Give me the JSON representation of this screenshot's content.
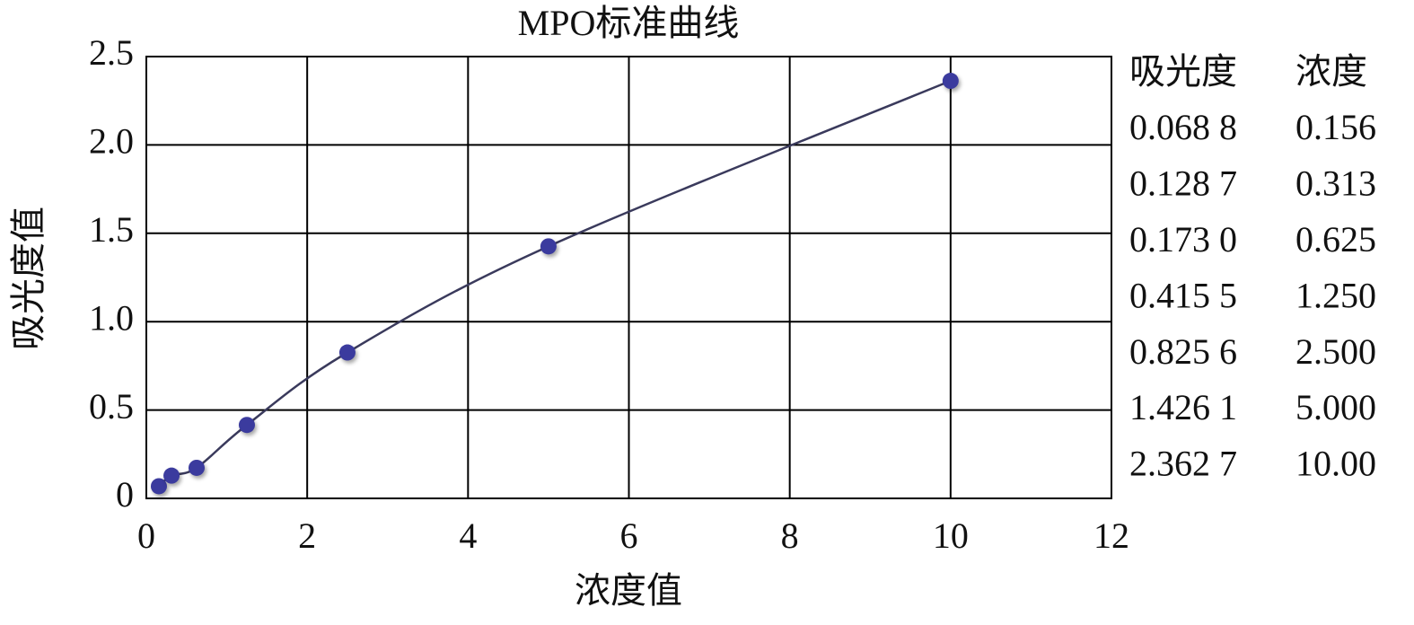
{
  "chart_data": {
    "type": "scatter",
    "title": "MPO标准曲线",
    "x_label": "浓度值",
    "y_label": "吸光度值",
    "x": [
      0.156,
      0.313,
      0.625,
      1.25,
      2.5,
      5,
      10
    ],
    "values": [
      0.0688,
      0.1287,
      0.173,
      0.4155,
      0.8256,
      1.4261,
      2.3627
    ],
    "color": "#3b3b9e",
    "curve_color": "#3a3a5c",
    "smooth_curve": true,
    "xlim": [
      0,
      12
    ],
    "ylim": [
      0,
      2.5
    ],
    "xticks": [
      0,
      2,
      4,
      6,
      8,
      10,
      12
    ],
    "yticks": [
      0,
      0.5,
      {
        "value": 1,
        "label": "1.0"
      },
      1.5,
      {
        "value": 2,
        "label": "2.0"
      },
      2.5
    ],
    "grid": true,
    "table": {
      "header": [
        "吸光度",
        "浓度"
      ],
      "rows": [
        [
          "0.068 8",
          "0.156"
        ],
        [
          "0.128 7",
          "0.313"
        ],
        [
          "0.173 0",
          "0.625"
        ],
        [
          "0.415 5",
          "1.250"
        ],
        [
          "0.825 6",
          "2.500"
        ],
        [
          "1.426 1",
          "5.000"
        ],
        [
          "2.362 7",
          "10.00"
        ]
      ]
    }
  }
}
